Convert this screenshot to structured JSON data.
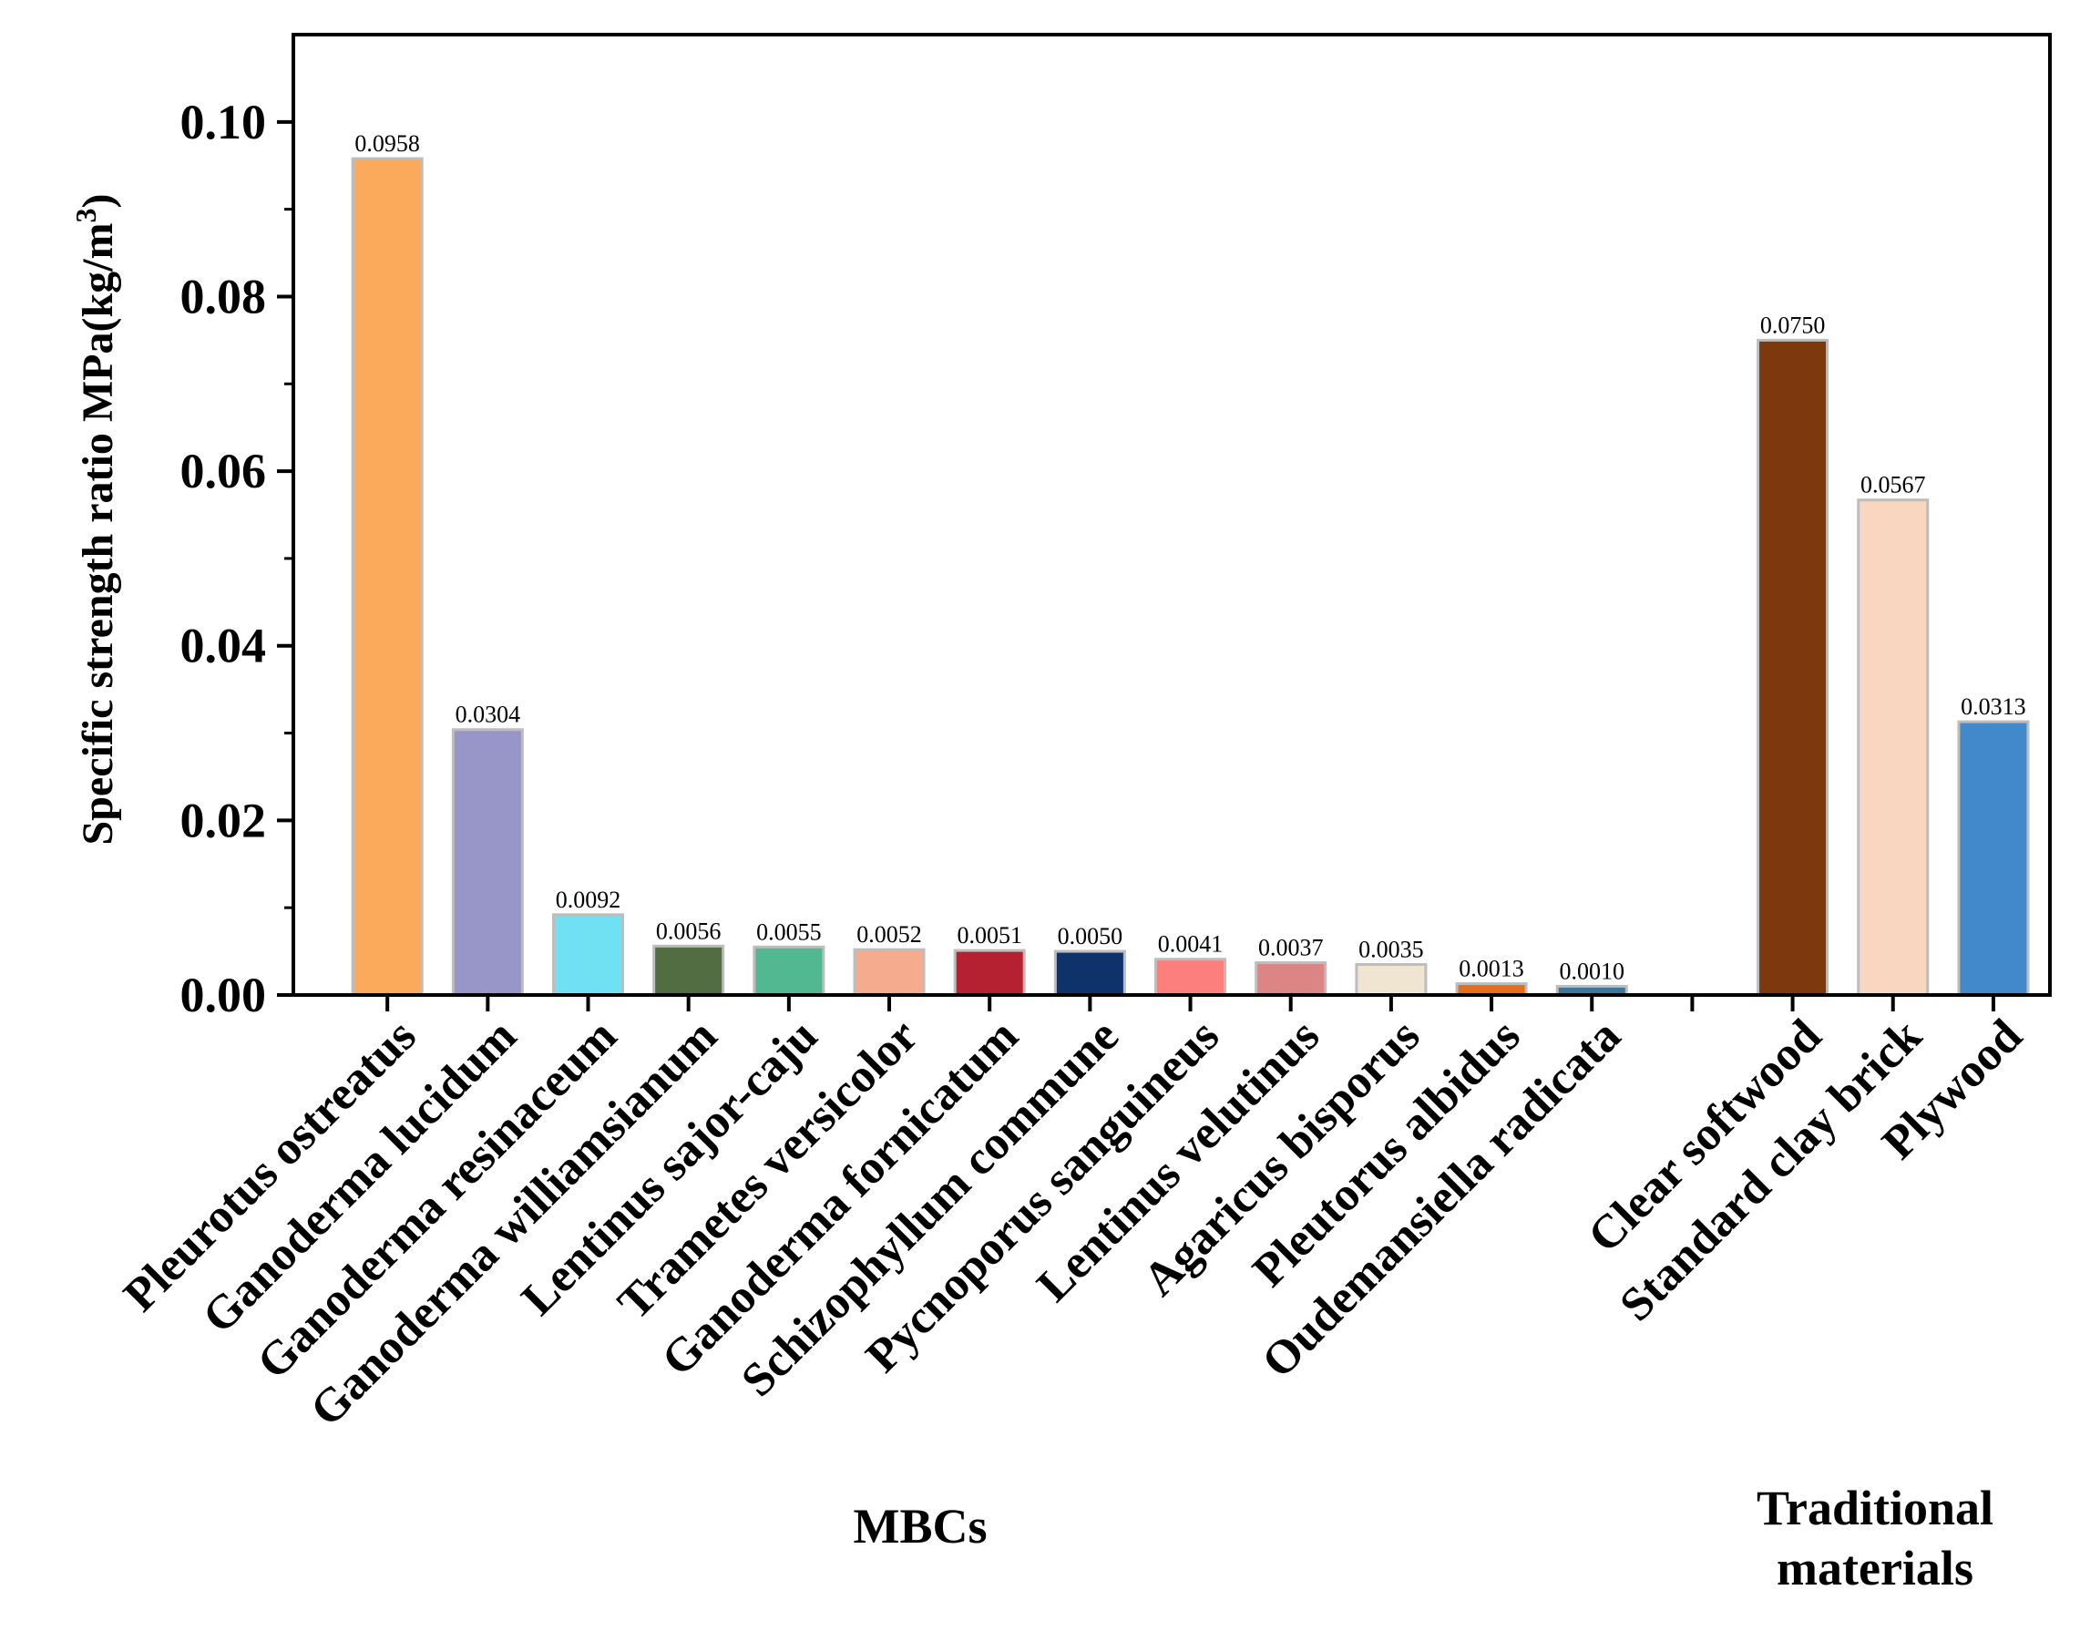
{
  "chart_data": {
    "type": "bar",
    "ylabel": "Specific strength ratio MPa(kg/m",
    "ylabel_superscript": "3",
    "ylabel_close": ")",
    "ylim": [
      0,
      0.11
    ],
    "yticks": [
      "0.00",
      "0.02",
      "0.04",
      "0.06",
      "0.08",
      "0.10"
    ],
    "ytick_values": [
      0,
      0.02,
      0.04,
      0.06,
      0.08,
      0.1
    ],
    "categories": [
      "Pleurotus ostreatus",
      "Ganoderma lucidum",
      "Ganoderma resinaceum",
      "Ganoderma williamsianum",
      "Lentinus sajor-caju",
      "Trametes versicolor",
      "Ganoderma fornicatum",
      "Schizophyllum commune",
      "Pycnoporus sanguineus",
      "Lentinus velutinus",
      "Agaricus bisporus",
      "Pleutorus albidus",
      "Oudemansiella radicata",
      "",
      "Clear softwood",
      "Standard clay brick",
      "Plywood"
    ],
    "values": [
      0.0958,
      0.0304,
      0.0092,
      0.0056,
      0.0055,
      0.0052,
      0.0051,
      0.005,
      0.0041,
      0.0037,
      0.0035,
      0.0013,
      0.001,
      null,
      0.075,
      0.0567,
      0.0313
    ],
    "value_labels": [
      "0.0958",
      "0.0304",
      "0.0092",
      "0.0056",
      "0.0055",
      "0.0052",
      "0.0051",
      "0.0050",
      "0.0041",
      "0.0037",
      "0.0035",
      "0.0013",
      "0.0010",
      "",
      "0.0750",
      "0.0567",
      "0.0313"
    ],
    "colors": [
      "#FBAA5C",
      "#9896C8",
      "#6FE1F3",
      "#526D41",
      "#52B891",
      "#F5AC8E",
      "#B52130",
      "#0E336A",
      "#FC7F7E",
      "#DC8585",
      "#F0E5D0",
      "#E66D1C",
      "#3E7699",
      null,
      "#7E380E",
      "#F8D6C0",
      "#4189CB"
    ],
    "groups": [
      {
        "label_lines": [
          "MBCs"
        ]
      },
      {
        "label_lines": [
          "Traditional",
          "materials"
        ]
      }
    ]
  }
}
